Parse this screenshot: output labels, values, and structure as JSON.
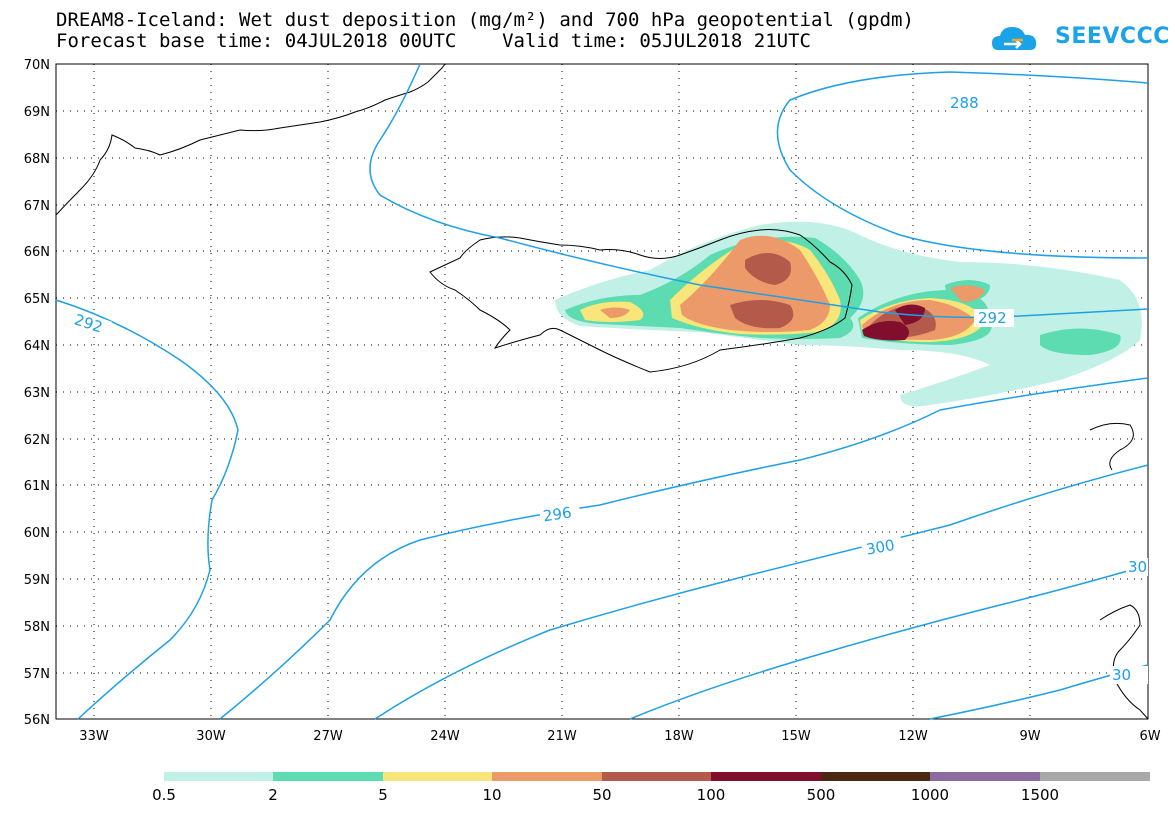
{
  "title": {
    "line1": "DREAM8-Iceland: Wet dust deposition (mg/m²) and 700 hPa geopotential (gpdm)",
    "line2": "Forecast base time: 04JUL2018 00UTC    Valid time: 05JUL2018 21UTC"
  },
  "logo": {
    "text": "SEEVCCC",
    "icon": "cloud-icon",
    "color": "#1aa3e8"
  },
  "map": {
    "lon_labels": [
      "33W",
      "30W",
      "27W",
      "24W",
      "21W",
      "18W",
      "15W",
      "12W",
      "9W",
      "6W"
    ],
    "lat_labels": [
      "70N",
      "69N",
      "68N",
      "67N",
      "66N",
      "65N",
      "64N",
      "63N",
      "62N",
      "61N",
      "60N",
      "59N",
      "58N",
      "57N",
      "56N"
    ],
    "contour_color": "#1ea0e6",
    "contour_labels": [
      "288",
      "292",
      "292",
      "296",
      "300",
      "30",
      "30"
    ]
  },
  "legend": {
    "labels": [
      "0.5",
      "2",
      "5",
      "10",
      "50",
      "100",
      "500",
      "1000",
      "1500"
    ],
    "colors": [
      "#c1f0e6",
      "#5cdcb0",
      "#f8e67a",
      "#ec9a6a",
      "#b45a4a",
      "#820e2e",
      "#4a2812",
      "#8c6ca0",
      "#a8a8a8"
    ]
  }
}
